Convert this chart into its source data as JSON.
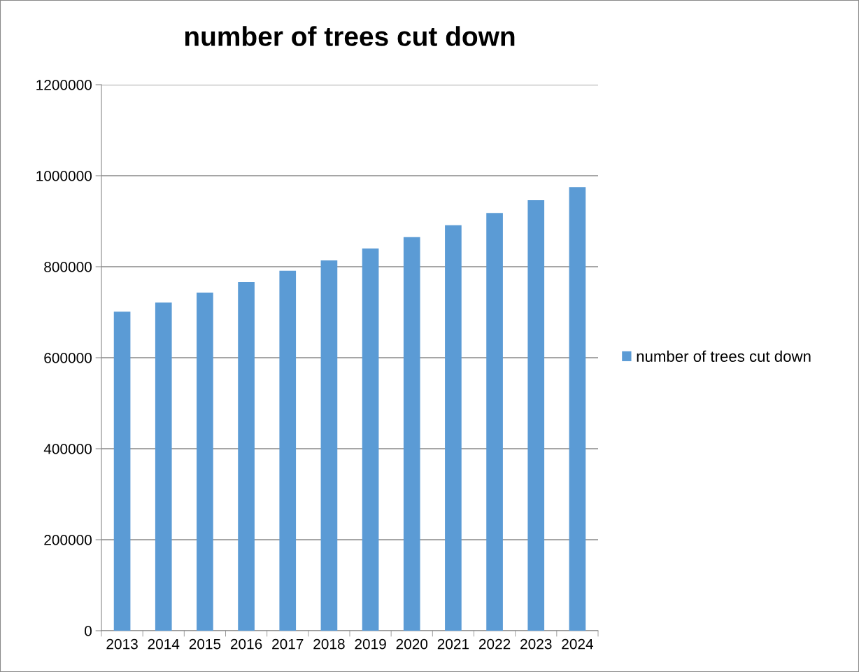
{
  "chart_data": {
    "type": "bar",
    "title": "number of trees cut down",
    "categories": [
      "2013",
      "2014",
      "2015",
      "2016",
      "2017",
      "2018",
      "2019",
      "2020",
      "2021",
      "2022",
      "2023",
      "2024"
    ],
    "series": [
      {
        "name": "number of trees cut down",
        "color": "#5b9bd5",
        "values": [
          701000,
          721000,
          743000,
          766000,
          791000,
          814000,
          840000,
          865000,
          891000,
          918000,
          946000,
          975000
        ]
      }
    ],
    "ylim": [
      0,
      1200000
    ],
    "yticks": [
      0,
      200000,
      400000,
      600000,
      800000,
      1000000,
      1200000
    ],
    "grid": "y",
    "legend": "right"
  }
}
